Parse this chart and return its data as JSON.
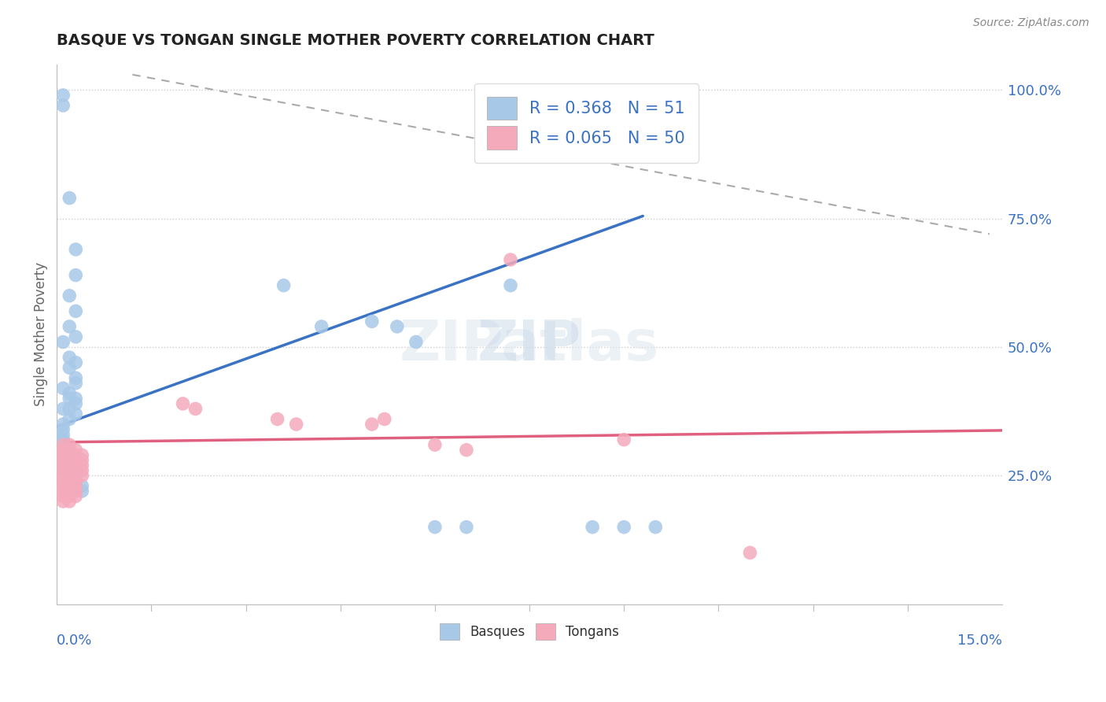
{
  "title": "BASQUE VS TONGAN SINGLE MOTHER POVERTY CORRELATION CHART",
  "source": "Source: ZipAtlas.com",
  "ylabel": "Single Mother Poverty",
  "right_ytick_vals": [
    0.25,
    0.5,
    0.75,
    1.0
  ],
  "right_ytick_labels": [
    "25.0%",
    "50.0%",
    "75.0%",
    "100.0%"
  ],
  "basque_R": 0.368,
  "basque_N": 51,
  "tongan_R": 0.065,
  "tongan_N": 50,
  "basque_color": "#A8C8E8",
  "tongan_color": "#F4AABB",
  "basque_line_color": "#3A72C4",
  "tongan_line_color": "#E06080",
  "grid_color": "#CCCCCC",
  "legend_text_color": "#3A72C4",
  "basque_line_x0": 0.0,
  "basque_line_y0": 0.345,
  "basque_line_x1": 0.093,
  "basque_line_y1": 0.755,
  "tongan_line_x0": 0.0,
  "tongan_line_y0": 0.315,
  "tongan_line_x1": 0.15,
  "tongan_line_y1": 0.338,
  "dash_line_x0": 0.012,
  "dash_line_y0": 1.03,
  "dash_line_x1": 0.148,
  "dash_line_y1": 0.72,
  "basques_scatter": [
    [
      0.001,
      0.97
    ],
    [
      0.001,
      0.99
    ],
    [
      0.002,
      0.79
    ],
    [
      0.003,
      0.69
    ],
    [
      0.003,
      0.64
    ],
    [
      0.002,
      0.6
    ],
    [
      0.003,
      0.57
    ],
    [
      0.002,
      0.54
    ],
    [
      0.003,
      0.52
    ],
    [
      0.001,
      0.51
    ],
    [
      0.002,
      0.48
    ],
    [
      0.003,
      0.47
    ],
    [
      0.002,
      0.46
    ],
    [
      0.003,
      0.44
    ],
    [
      0.003,
      0.43
    ],
    [
      0.001,
      0.42
    ],
    [
      0.002,
      0.41
    ],
    [
      0.002,
      0.4
    ],
    [
      0.003,
      0.4
    ],
    [
      0.003,
      0.39
    ],
    [
      0.001,
      0.38
    ],
    [
      0.002,
      0.38
    ],
    [
      0.003,
      0.37
    ],
    [
      0.002,
      0.36
    ],
    [
      0.001,
      0.35
    ],
    [
      0.001,
      0.34
    ],
    [
      0.001,
      0.33
    ],
    [
      0.001,
      0.32
    ],
    [
      0.001,
      0.32
    ],
    [
      0.001,
      0.31
    ],
    [
      0.001,
      0.3
    ],
    [
      0.001,
      0.3
    ],
    [
      0.001,
      0.29
    ],
    [
      0.001,
      0.28
    ],
    [
      0.001,
      0.27
    ],
    [
      0.001,
      0.26
    ],
    [
      0.003,
      0.25
    ],
    [
      0.003,
      0.24
    ],
    [
      0.004,
      0.23
    ],
    [
      0.004,
      0.22
    ],
    [
      0.036,
      0.62
    ],
    [
      0.042,
      0.54
    ],
    [
      0.05,
      0.55
    ],
    [
      0.054,
      0.54
    ],
    [
      0.057,
      0.51
    ],
    [
      0.06,
      0.15
    ],
    [
      0.065,
      0.15
    ],
    [
      0.072,
      0.62
    ],
    [
      0.085,
      0.15
    ],
    [
      0.09,
      0.15
    ],
    [
      0.095,
      0.15
    ]
  ],
  "tongans_scatter": [
    [
      0.001,
      0.31
    ],
    [
      0.001,
      0.3
    ],
    [
      0.001,
      0.29
    ],
    [
      0.001,
      0.28
    ],
    [
      0.001,
      0.27
    ],
    [
      0.001,
      0.26
    ],
    [
      0.001,
      0.25
    ],
    [
      0.001,
      0.24
    ],
    [
      0.001,
      0.23
    ],
    [
      0.001,
      0.22
    ],
    [
      0.001,
      0.21
    ],
    [
      0.001,
      0.2
    ],
    [
      0.002,
      0.31
    ],
    [
      0.002,
      0.3
    ],
    [
      0.002,
      0.29
    ],
    [
      0.002,
      0.28
    ],
    [
      0.002,
      0.27
    ],
    [
      0.002,
      0.26
    ],
    [
      0.002,
      0.25
    ],
    [
      0.002,
      0.24
    ],
    [
      0.002,
      0.23
    ],
    [
      0.002,
      0.22
    ],
    [
      0.002,
      0.21
    ],
    [
      0.002,
      0.2
    ],
    [
      0.003,
      0.3
    ],
    [
      0.003,
      0.29
    ],
    [
      0.003,
      0.28
    ],
    [
      0.003,
      0.27
    ],
    [
      0.003,
      0.26
    ],
    [
      0.003,
      0.25
    ],
    [
      0.003,
      0.24
    ],
    [
      0.003,
      0.23
    ],
    [
      0.003,
      0.22
    ],
    [
      0.003,
      0.21
    ],
    [
      0.004,
      0.29
    ],
    [
      0.004,
      0.28
    ],
    [
      0.004,
      0.27
    ],
    [
      0.004,
      0.26
    ],
    [
      0.004,
      0.25
    ],
    [
      0.02,
      0.39
    ],
    [
      0.022,
      0.38
    ],
    [
      0.035,
      0.36
    ],
    [
      0.038,
      0.35
    ],
    [
      0.05,
      0.35
    ],
    [
      0.052,
      0.36
    ],
    [
      0.06,
      0.31
    ],
    [
      0.065,
      0.3
    ],
    [
      0.072,
      0.67
    ],
    [
      0.09,
      0.32
    ],
    [
      0.11,
      0.1
    ]
  ],
  "xlim": [
    0.0,
    0.15
  ],
  "ylim": [
    0.0,
    1.05
  ],
  "background_color": "#FFFFFF"
}
